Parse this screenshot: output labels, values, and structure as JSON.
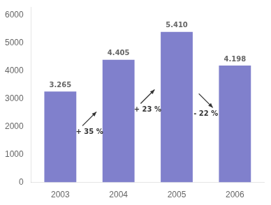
{
  "chart_data": {
    "type": "bar",
    "categories": [
      "2003",
      "2004",
      "2005",
      "2006"
    ],
    "values": [
      3265,
      4405,
      5410,
      4198
    ],
    "value_labels": [
      "3.265",
      "4.405",
      "5.410",
      "4.198"
    ],
    "data_labels": true,
    "color": "#8080cc",
    "ylim": [
      0,
      6300
    ],
    "yticks": [
      0,
      1000,
      2000,
      3000,
      4000,
      5000,
      6000
    ],
    "grid": false,
    "annotations": [
      "+ 35 %",
      "+ 23 %",
      "- 22 %"
    ]
  }
}
